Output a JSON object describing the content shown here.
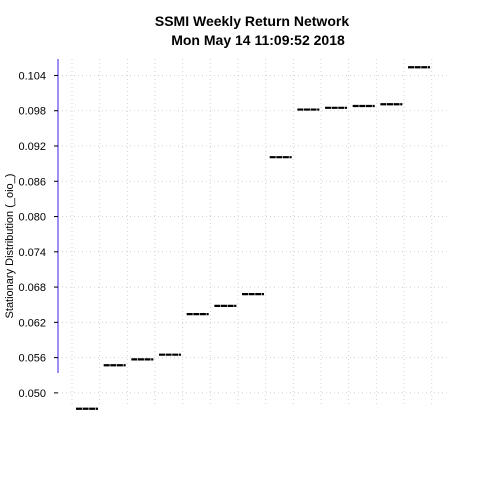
{
  "chart_data": {
    "type": "step",
    "title": "SSMI  Weekly Return Network",
    "subtitle": "Mon May 14 11:09:52 2018",
    "xlabel": "",
    "ylabel": "Stationary Distribution (_oio_)",
    "ylim": [
      0.0476,
      0.1068
    ],
    "yticks": [
      "0.050",
      "0.056",
      "0.062",
      "0.068",
      "0.074",
      "0.080",
      "0.086",
      "0.092",
      "0.098",
      "0.104"
    ],
    "grid": true,
    "values": [
      0.0473,
      0.0547,
      0.0557,
      0.0565,
      0.0634,
      0.0648,
      0.0668,
      0.0901,
      0.0982,
      0.0985,
      0.0988,
      0.0991,
      0.1054
    ]
  }
}
